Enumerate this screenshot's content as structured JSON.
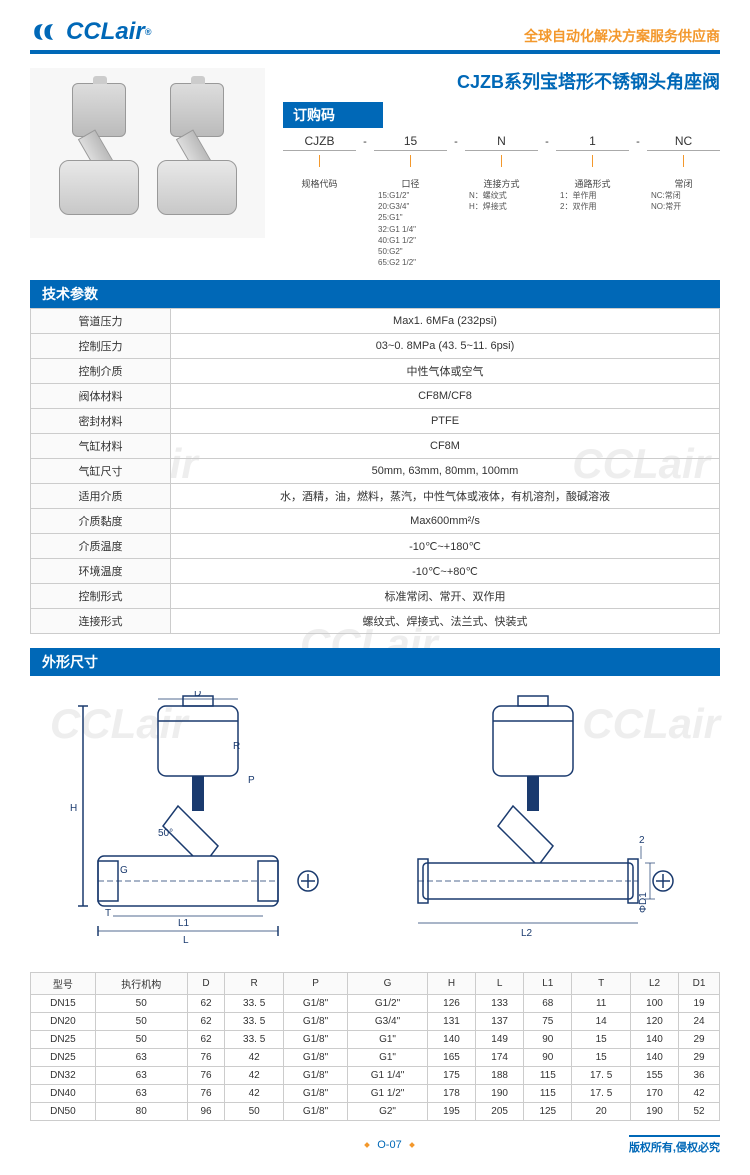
{
  "header": {
    "logo_text": "CCLair",
    "tagline": "全球自动化解决方案服务供应商"
  },
  "product_title": "CJZB系列宝塔形不锈钢头角座阀",
  "order_code": {
    "section_title": "订购码",
    "parts": [
      {
        "val": "CJZB",
        "label": "规格代码",
        "desc": ""
      },
      {
        "val": "15",
        "label": "口径",
        "desc": "15:G1/2\"\n20:G3/4\"\n25:G1\"\n32:G1 1/4\"\n40:G1 1/2\"\n50:G2\"\n65:G2 1/2\""
      },
      {
        "val": "N",
        "label": "连接方式",
        "desc": "N：螺纹式\nH：焊接式"
      },
      {
        "val": "1",
        "label": "通路形式",
        "desc": "1：单作用\n2：双作用"
      },
      {
        "val": "NC",
        "label": "常闭",
        "desc": "NC:常闭\nNO:常开"
      }
    ]
  },
  "tech_spec": {
    "section_title": "技术参数",
    "rows": [
      {
        "k": "管道压力",
        "v": "Max1. 6MFa (232psi)"
      },
      {
        "k": "控制压力",
        "v": "03~0. 8MPa (43. 5~11. 6psi)"
      },
      {
        "k": "控制介质",
        "v": "中性气体或空气"
      },
      {
        "k": "阀体材料",
        "v": "CF8M/CF8"
      },
      {
        "k": "密封材料",
        "v": "PTFE"
      },
      {
        "k": "气缸材料",
        "v": "CF8M"
      },
      {
        "k": "气缸尺寸",
        "v": "50mm, 63mm, 80mm, 100mm"
      },
      {
        "k": "适用介质",
        "v": "水，酒精，油，燃料，蒸汽，中性气体或液体，有机溶剂，酸碱溶液"
      },
      {
        "k": "介质黏度",
        "v": "Max600mm²/s"
      },
      {
        "k": "介质温度",
        "v": "-10℃~+180℃"
      },
      {
        "k": "环境温度",
        "v": "-10℃~+80℃"
      },
      {
        "k": "控制形式",
        "v": "标准常闭、常开、双作用"
      },
      {
        "k": "连接形式",
        "v": "螺纹式、焊接式、法兰式、快装式"
      }
    ]
  },
  "dimensions": {
    "section_title": "外形尺寸",
    "columns": [
      "型号",
      "执行机构",
      "D",
      "R",
      "P",
      "G",
      "H",
      "L",
      "L1",
      "T",
      "L2",
      "D1"
    ],
    "rows": [
      [
        "DN15",
        "50",
        "62",
        "33. 5",
        "G1/8\"",
        "G1/2\"",
        "126",
        "133",
        "68",
        "11",
        "100",
        "19"
      ],
      [
        "DN20",
        "50",
        "62",
        "33. 5",
        "G1/8\"",
        "G3/4\"",
        "131",
        "137",
        "75",
        "14",
        "120",
        "24"
      ],
      [
        "DN25",
        "50",
        "62",
        "33. 5",
        "G1/8\"",
        "G1\"",
        "140",
        "149",
        "90",
        "15",
        "140",
        "29"
      ],
      [
        "DN25",
        "63",
        "76",
        "42",
        "G1/8\"",
        "G1\"",
        "165",
        "174",
        "90",
        "15",
        "140",
        "29"
      ],
      [
        "DN32",
        "63",
        "76",
        "42",
        "G1/8\"",
        "G1 1/4\"",
        "175",
        "188",
        "115",
        "17. 5",
        "155",
        "36"
      ],
      [
        "DN40",
        "63",
        "76",
        "42",
        "G1/8\"",
        "G1 1/2\"",
        "178",
        "190",
        "115",
        "17. 5",
        "170",
        "42"
      ],
      [
        "DN50",
        "80",
        "96",
        "50",
        "G1/8\"",
        "G2\"",
        "195",
        "205",
        "125",
        "20",
        "190",
        "52"
      ]
    ]
  },
  "drawing_labels": [
    "D",
    "H",
    "R",
    "P",
    "G",
    "T",
    "L1",
    "L",
    "50°",
    "L2",
    "ΦD1",
    "2"
  ],
  "footer": {
    "page": "O-07",
    "copyright": "版权所有,侵权必究"
  },
  "watermark_text": "CCLair",
  "colors": {
    "primary": "#0068b7",
    "accent": "#f3982c",
    "border": "#cccccc"
  }
}
